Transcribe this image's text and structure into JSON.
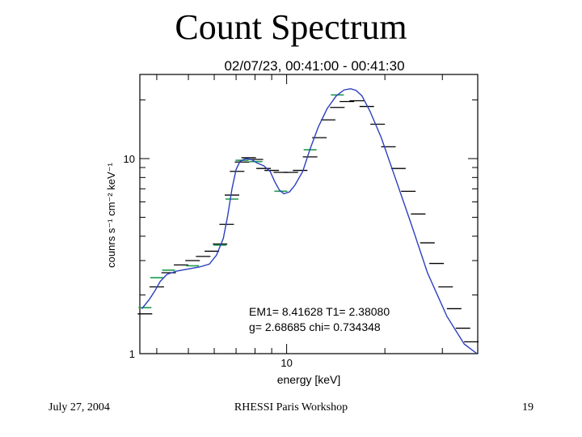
{
  "slide": {
    "title": "Count Spectrum",
    "footer_left": "July 27, 2004",
    "footer_center": "RHESSI Paris Workshop",
    "footer_right": "19"
  },
  "colors": {
    "fit_line": "#2b3fbf",
    "data_marks": "#000000",
    "model_marks": "#1f9a4f",
    "axes": "#000000"
  },
  "chart_data": {
    "type": "line",
    "title": "02/07/23, 00:41:00 - 00:41:30",
    "xlabel": "energy [keV]",
    "ylabel": "counrs s⁻¹ cm⁻² keV⁻¹",
    "xscale": "log",
    "yscale": "log",
    "xlim": [
      3.55,
      38.5
    ],
    "ylim": [
      1,
      27
    ],
    "x_ticks": [
      {
        "value": 10,
        "label": "10"
      }
    ],
    "y_ticks": [
      {
        "value": 1,
        "label": "1"
      },
      {
        "value": 10,
        "label": "10"
      }
    ],
    "grid": false,
    "annotations": [
      "EM1= 8.41628 T1= 2.38080",
      "g= 2.68685 chi= 0.734348"
    ],
    "series": [
      {
        "kind": "fit-line",
        "x": [
          3.6,
          3.8,
          3.95,
          4.1,
          4.3,
          4.6,
          5.0,
          5.4,
          5.8,
          6.1,
          6.4,
          6.6,
          6.8,
          7.0,
          7.2,
          7.5,
          7.8,
          8.1,
          8.5,
          8.9,
          9.2,
          9.5,
          9.8,
          10.2,
          10.6,
          11.2,
          11.8,
          12.5,
          13.3,
          14.2,
          15.0,
          15.7,
          16.3,
          17.0,
          18.0,
          19.5,
          21.5,
          24.0,
          27.0,
          31.0,
          35.0,
          38.3
        ],
        "y": [
          1.7,
          1.9,
          2.1,
          2.35,
          2.55,
          2.65,
          2.72,
          2.78,
          2.88,
          3.2,
          3.9,
          5.1,
          7.0,
          8.8,
          9.7,
          10.0,
          9.9,
          9.5,
          9.2,
          8.6,
          7.6,
          6.9,
          6.6,
          6.75,
          7.3,
          8.6,
          11.2,
          14.5,
          18.0,
          21.0,
          22.5,
          22.8,
          22.4,
          21.0,
          17.5,
          12.8,
          8.0,
          4.7,
          2.6,
          1.55,
          1.12,
          1.0
        ]
      },
      {
        "kind": "data-marks",
        "points": [
          {
            "x": 3.68,
            "y": 1.6
          },
          {
            "x": 4.0,
            "y": 2.2
          },
          {
            "x": 4.35,
            "y": 2.6
          },
          {
            "x": 4.75,
            "y": 2.85
          },
          {
            "x": 5.15,
            "y": 3.0
          },
          {
            "x": 5.55,
            "y": 3.15
          },
          {
            "x": 5.9,
            "y": 3.35
          },
          {
            "x": 6.25,
            "y": 3.65
          },
          {
            "x": 6.55,
            "y": 4.6
          },
          {
            "x": 6.8,
            "y": 6.5
          },
          {
            "x": 7.05,
            "y": 8.6
          },
          {
            "x": 7.3,
            "y": 9.6
          },
          {
            "x": 7.65,
            "y": 10.1
          },
          {
            "x": 8.05,
            "y": 9.9
          },
          {
            "x": 8.5,
            "y": 8.9
          },
          {
            "x": 9.0,
            "y": 8.7
          },
          {
            "x": 9.6,
            "y": 8.5
          },
          {
            "x": 10.3,
            "y": 8.5
          },
          {
            "x": 11.0,
            "y": 8.7
          },
          {
            "x": 11.8,
            "y": 10.2
          },
          {
            "x": 12.6,
            "y": 12.8
          },
          {
            "x": 13.4,
            "y": 15.8
          },
          {
            "x": 14.3,
            "y": 18.3
          },
          {
            "x": 15.3,
            "y": 19.6
          },
          {
            "x": 16.4,
            "y": 19.8
          },
          {
            "x": 17.6,
            "y": 18.5
          },
          {
            "x": 19.0,
            "y": 15.0
          },
          {
            "x": 20.5,
            "y": 11.5
          },
          {
            "x": 22.0,
            "y": 8.9
          },
          {
            "x": 23.6,
            "y": 6.8
          },
          {
            "x": 25.3,
            "y": 5.2
          },
          {
            "x": 27.0,
            "y": 3.7
          },
          {
            "x": 28.8,
            "y": 2.9
          },
          {
            "x": 30.7,
            "y": 2.2
          },
          {
            "x": 32.6,
            "y": 1.7
          },
          {
            "x": 34.7,
            "y": 1.35
          },
          {
            "x": 36.8,
            "y": 1.15
          }
        ]
      },
      {
        "kind": "model-marks",
        "points": [
          {
            "x": 3.68,
            "y": 1.72
          },
          {
            "x": 4.0,
            "y": 2.45
          },
          {
            "x": 4.35,
            "y": 2.68
          },
          {
            "x": 5.15,
            "y": 2.82
          },
          {
            "x": 6.25,
            "y": 3.6
          },
          {
            "x": 6.8,
            "y": 6.2
          },
          {
            "x": 7.3,
            "y": 9.8
          },
          {
            "x": 8.05,
            "y": 9.65
          },
          {
            "x": 9.6,
            "y": 6.8
          },
          {
            "x": 11.8,
            "y": 11.1
          },
          {
            "x": 14.3,
            "y": 21.2
          }
        ]
      }
    ]
  }
}
